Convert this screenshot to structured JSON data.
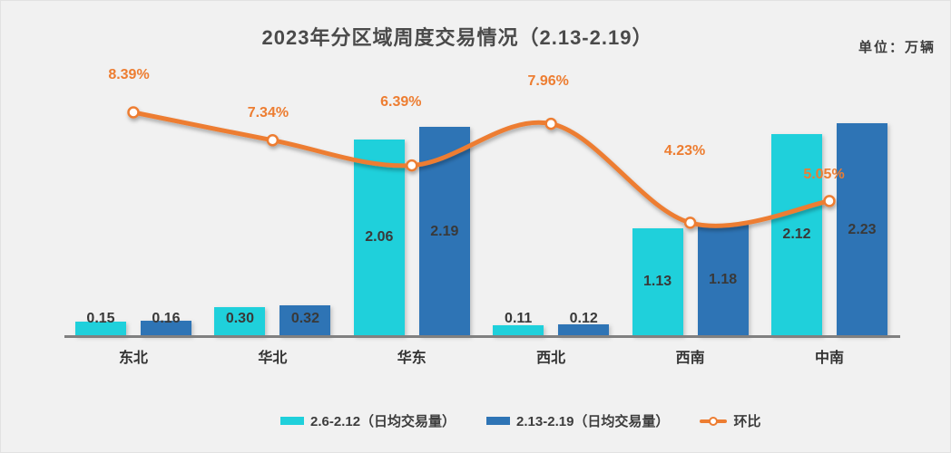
{
  "title": "2023年分区域周度交易情况（2.13-2.19）",
  "unit_label": "单位：万辆",
  "legend": {
    "series1": "2.6-2.12（日均交易量）",
    "series2": "2.13-2.19（日均交易量）",
    "series3": "环比"
  },
  "colors": {
    "series1_cyan": "#1FD0DB",
    "series2_blue": "#2E74B5",
    "line_orange": "#ED7D31",
    "background": "#F1F1F1",
    "axis_gray": "#808080",
    "text_dark": "#3D3D3D"
  },
  "chart_data": {
    "type": "bar",
    "subtype": "grouped bars with secondary-axis smooth line",
    "title": "2023年分区域周度交易情况（2.13-2.19）",
    "unit": "万辆",
    "categories": [
      "东北",
      "华北",
      "华东",
      "西北",
      "西南",
      "中南"
    ],
    "series": [
      {
        "name": "2.6-2.12（日均交易量）",
        "type": "bar",
        "color": "#1FD0DB",
        "values": [
          0.15,
          0.3,
          2.06,
          0.11,
          1.13,
          2.12
        ]
      },
      {
        "name": "2.13-2.19（日均交易量）",
        "type": "bar",
        "color": "#2E74B5",
        "values": [
          0.16,
          0.32,
          2.19,
          0.12,
          1.18,
          2.23
        ]
      },
      {
        "name": "环比",
        "type": "line",
        "axis": "secondary",
        "unit": "%",
        "color": "#ED7D31",
        "values": [
          8.39,
          7.34,
          6.39,
          7.96,
          4.23,
          5.05
        ]
      }
    ],
    "xlabel": "",
    "ylabel": "",
    "grid": false,
    "legend_position": "bottom",
    "value_label_decimals": 2,
    "line_label_suffix": "%",
    "layout_hints": {
      "line_label_dx": [
        -5,
        -5,
        -12,
        -3,
        -6,
        -6
      ],
      "line_label_dy": [
        -41,
        -30,
        -70,
        -47,
        -79,
        -29
      ]
    }
  }
}
